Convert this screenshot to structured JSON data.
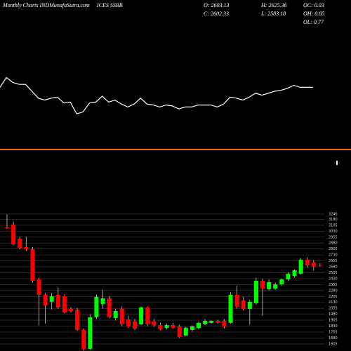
{
  "chart_data": {
    "type": "candlestick",
    "title": "Monthly Charts INDMunafaSutra.com",
    "symbol": "ICES SSBB",
    "ohlc_labels": [
      "O: 2603.13",
      "H: 2625.36",
      "OC: 0.03",
      "C: 2602.33",
      "L: 2583.18",
      "OH: 0.85",
      "OL: 0.77"
    ],
    "open": [
      3080,
      3113,
      2935,
      2829,
      2802,
      2421,
      2226,
      2137,
      2226,
      2208,
      2048,
      2040,
      1782,
      1543,
      1942,
      2110,
      2181,
      1933,
      2048,
      1915,
      1889,
      1853,
      2066,
      1889,
      1844,
      1808,
      1844,
      1826,
      1711,
      1782,
      1808,
      1853,
      1871,
      1897,
      1897,
      1871,
      2226,
      2155,
      2048,
      2119,
      2403,
      2297,
      2305,
      2359,
      2421,
      2465,
      2492,
      2669,
      2634,
      2603.13
    ],
    "high": [
      3240,
      3150,
      2960,
      2960,
      2830,
      2440,
      2250,
      2250,
      2320,
      2230,
      2070,
      2060,
      1800,
      1980,
      2230,
      2290,
      2210,
      2050,
      2080,
      1960,
      1920,
      2080,
      2080,
      1920,
      1870,
      1860,
      1870,
      1850,
      1820,
      1840,
      1890,
      1920,
      1900,
      1910,
      1920,
      2260,
      2340,
      2200,
      2160,
      2440,
      2430,
      2420,
      2380,
      2430,
      2510,
      2550,
      2690,
      2700,
      2660,
      2625.36
    ],
    "low": [
      3060,
      2850,
      2800,
      2780,
      2380,
      1840,
      1860,
      2040,
      2050,
      1990,
      2000,
      1770,
      1520,
      1530,
      1920,
      2050,
      1930,
      1900,
      1830,
      1810,
      1780,
      1840,
      1830,
      1820,
      1780,
      1790,
      1800,
      1680,
      1700,
      1760,
      1790,
      1840,
      1860,
      1860,
      1800,
      1860,
      2050,
      2030,
      1850,
      2100,
      1960,
      2280,
      2290,
      2340,
      2400,
      2440,
      2480,
      2570,
      2530,
      2583.18
    ],
    "close": [
      3068,
      2864,
      2820,
      2802,
      2403,
      2226,
      2093,
      2208,
      2066,
      2004,
      2022,
      1782,
      1543,
      1942,
      2199,
      2181,
      1942,
      2022,
      1853,
      1826,
      1799,
      2066,
      1853,
      1844,
      1791,
      1844,
      1808,
      1693,
      1808,
      1826,
      1871,
      1897,
      1897,
      1871,
      1826,
      2226,
      2075,
      2048,
      2137,
      2403,
      2305,
      2385,
      2359,
      2421,
      2492,
      2536,
      2669,
      2598,
      2580,
      2602.33
    ],
    "up_color": "#00ff00",
    "down_color": "#ff0000",
    "ylim": [
      1520,
      3290
    ],
    "yticks": [
      3246,
      3180,
      3105,
      3030,
      2955,
      2880,
      2805,
      2730,
      2655,
      2580,
      2505,
      2430,
      2355,
      2280,
      2205,
      2130,
      2055,
      1980,
      1905,
      1830,
      1755,
      1680,
      1605
    ],
    "grid": true,
    "indicator": {
      "color": "#ffffff",
      "ylim": [
        0,
        100
      ],
      "values": [
        54,
        64,
        59,
        57,
        57,
        50,
        43,
        41,
        43,
        44,
        38,
        39,
        27,
        29,
        38,
        39,
        45,
        39,
        41,
        37,
        34,
        37,
        43,
        37,
        36,
        34,
        36,
        35,
        32,
        34,
        34,
        36,
        36,
        36,
        34,
        37,
        44,
        43,
        41,
        44,
        48,
        46,
        48,
        50,
        51,
        53,
        56,
        54,
        54,
        54
      ]
    }
  }
}
